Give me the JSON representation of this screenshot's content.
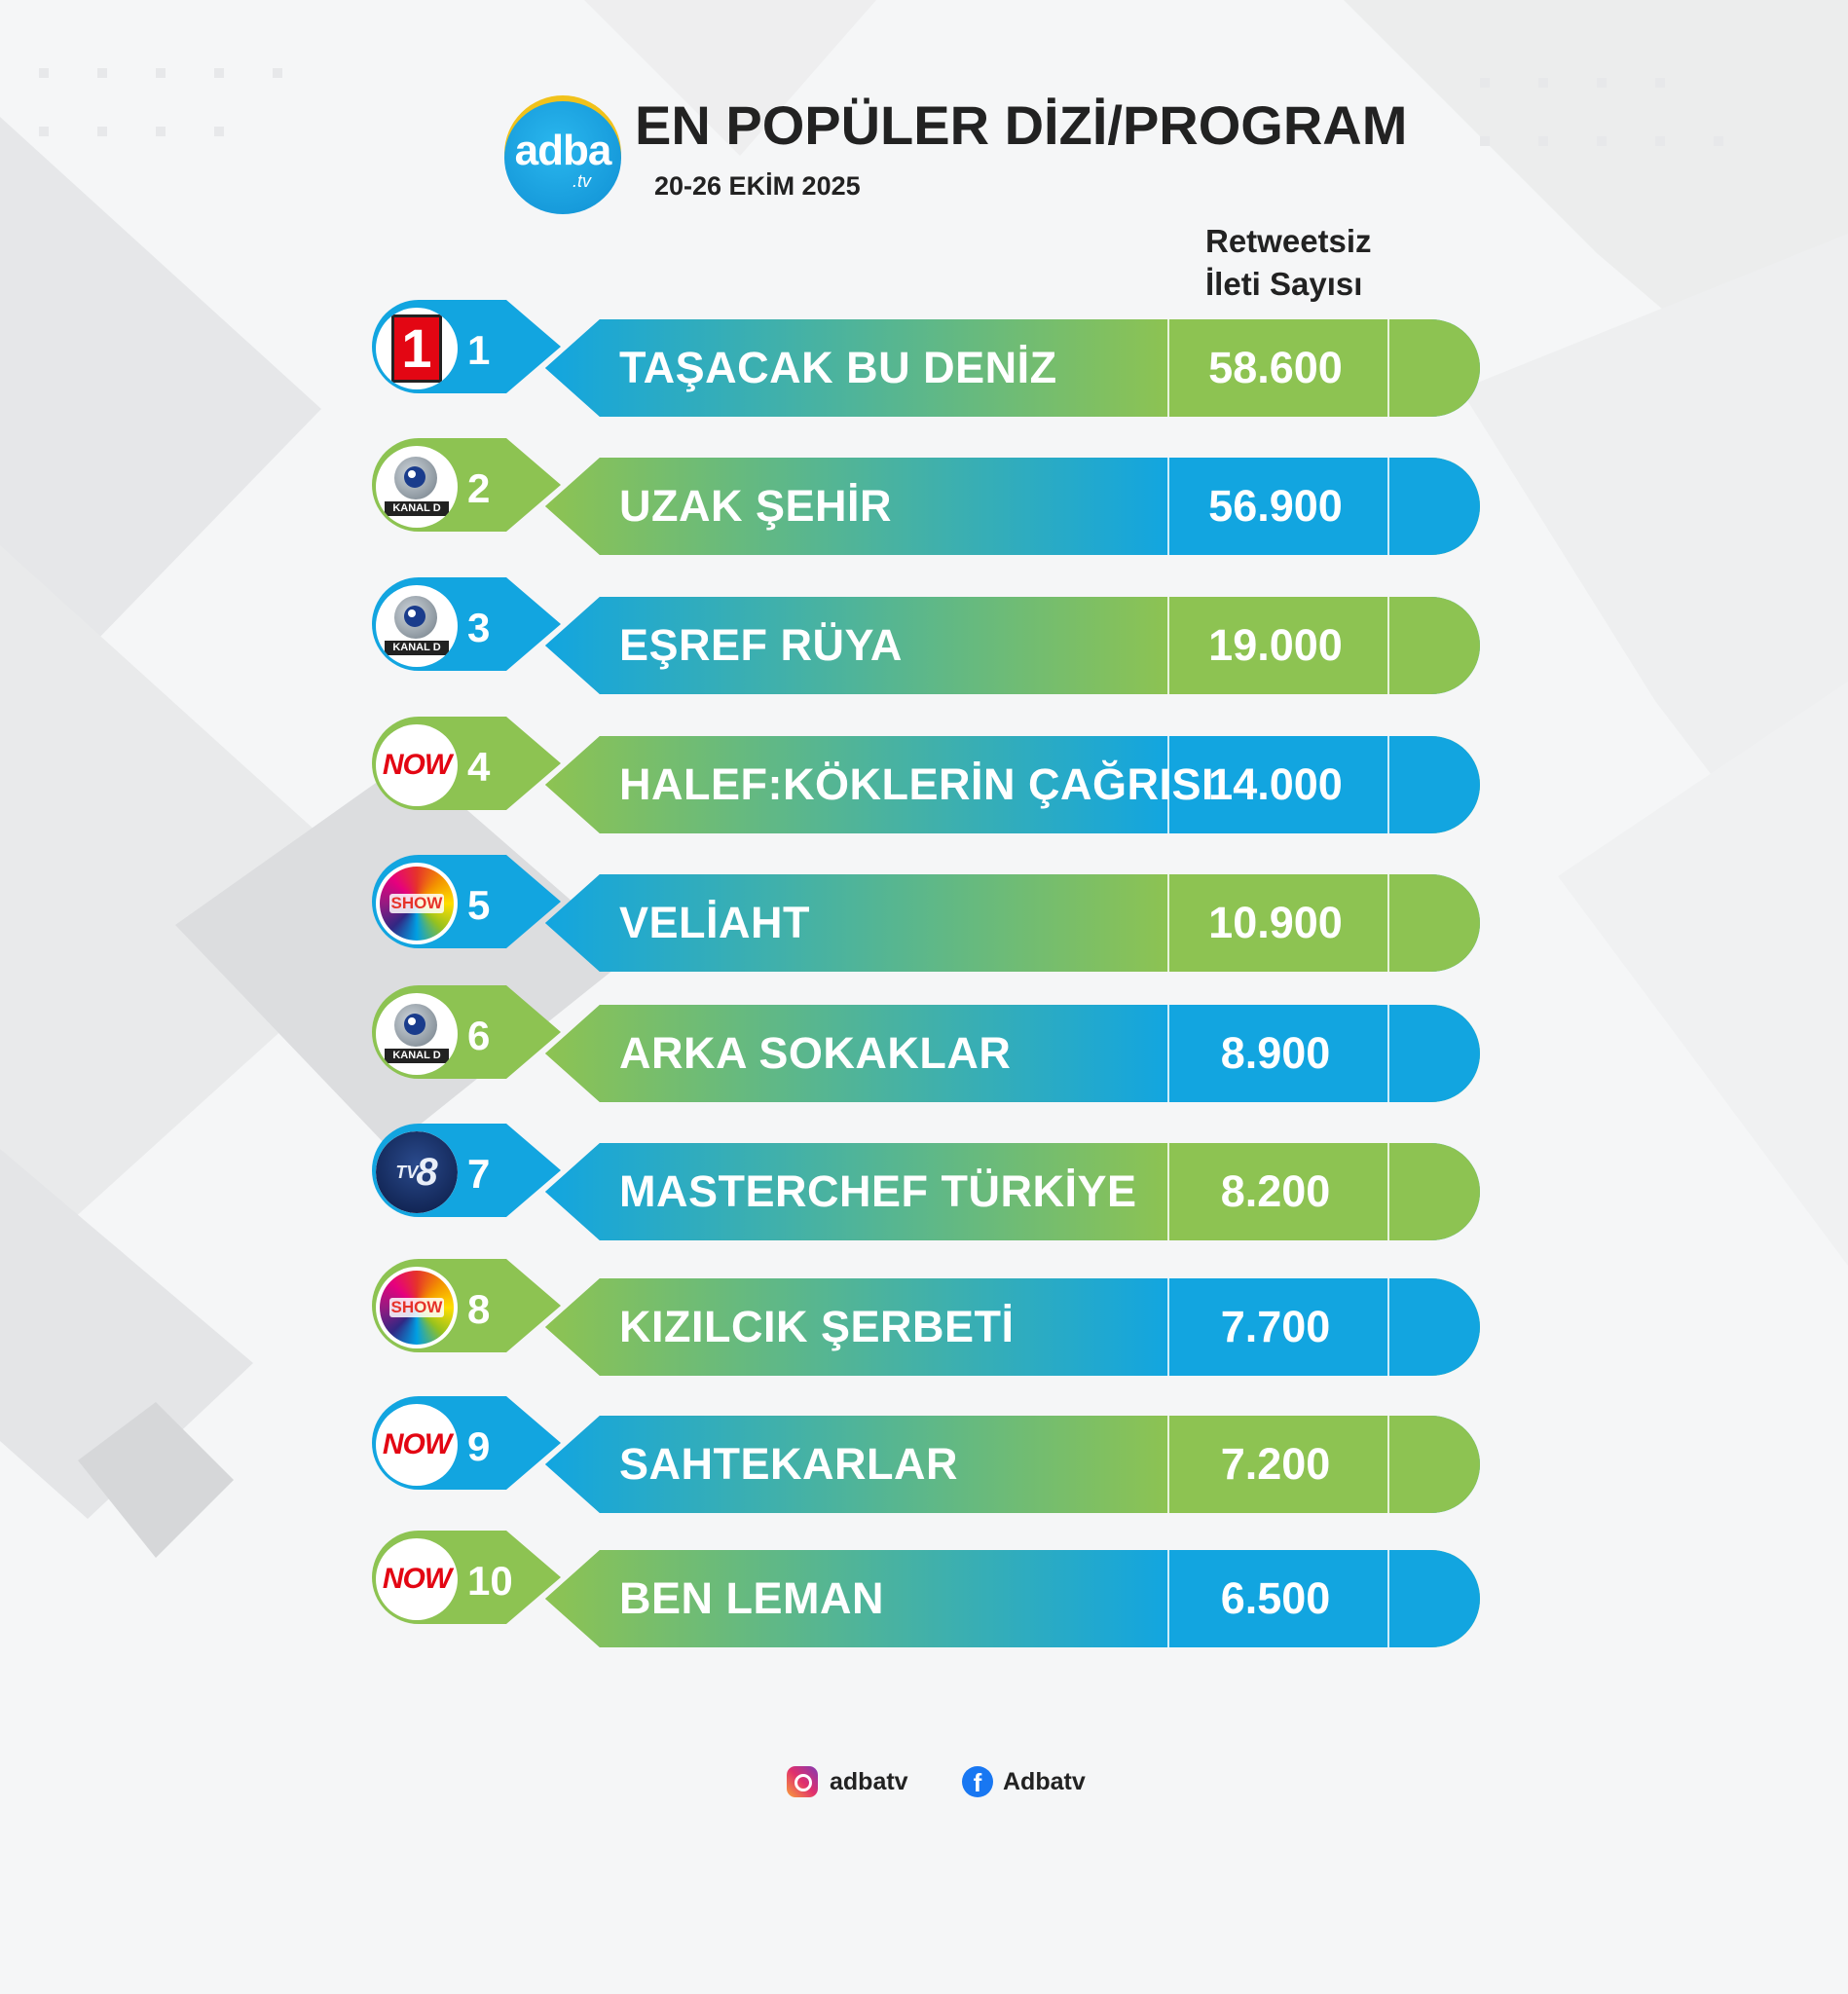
{
  "header": {
    "logo_main": "adba",
    "logo_sub": ".tv",
    "title": "EN POPÜLER DİZİ/PROGRAM",
    "date": "20-26 EKİM 2025",
    "column_header_line1": "Retweetsiz",
    "column_header_line2": "İleti Sayısı"
  },
  "colors": {
    "blue": "#12a5e0",
    "green": "#8dc352"
  },
  "rows": [
    {
      "rank": "1",
      "name": "TAŞACAK BU DENİZ",
      "value": "58.600",
      "channel": "kanal-1",
      "channel_icon": "channel-1-icon",
      "style": "blue"
    },
    {
      "rank": "2",
      "name": "UZAK ŞEHİR",
      "value": "56.900",
      "channel": "kanal-d",
      "channel_label": "KANAL D",
      "channel_icon": "kanal-d-icon",
      "style": "green"
    },
    {
      "rank": "3",
      "name": "EŞREF RÜYA",
      "value": "19.000",
      "channel": "kanal-d",
      "channel_label": "KANAL D",
      "channel_icon": "kanal-d-icon",
      "style": "blue"
    },
    {
      "rank": "4",
      "name": "HALEF:KÖKLERİN ÇAĞRISI",
      "value": "14.000",
      "channel": "now",
      "channel_label": "NOW",
      "channel_icon": "now-icon",
      "style": "green"
    },
    {
      "rank": "5",
      "name": "VELİAHT",
      "value": "10.900",
      "channel": "show",
      "channel_label": "SHOW",
      "channel_icon": "show-tv-icon",
      "style": "blue"
    },
    {
      "rank": "6",
      "name": "ARKA SOKAKLAR",
      "value": "8.900",
      "channel": "kanal-d",
      "channel_label": "KANAL D",
      "channel_icon": "kanal-d-icon",
      "style": "green"
    },
    {
      "rank": "7",
      "name": "MASTERCHEF TÜRKİYE",
      "value": "8.200",
      "channel": "tv8",
      "channel_label": "8",
      "channel_icon": "tv8-icon",
      "style": "blue"
    },
    {
      "rank": "8",
      "name": "KIZILCIK ŞERBETİ",
      "value": "7.700",
      "channel": "show",
      "channel_label": "SHOW",
      "channel_icon": "show-tv-icon",
      "style": "green"
    },
    {
      "rank": "9",
      "name": "SAHTEKARLAR",
      "value": "7.200",
      "channel": "now",
      "channel_label": "NOW",
      "channel_icon": "now-icon",
      "style": "blue"
    },
    {
      "rank": "10",
      "name": "BEN LEMAN",
      "value": "6.500",
      "channel": "now",
      "channel_label": "NOW",
      "channel_icon": "now-icon",
      "style": "green"
    }
  ],
  "footer": {
    "instagram_handle": "adbatv",
    "facebook_handle": "Adbatv",
    "instagram_icon": "instagram-icon",
    "facebook_icon": "facebook-icon"
  }
}
